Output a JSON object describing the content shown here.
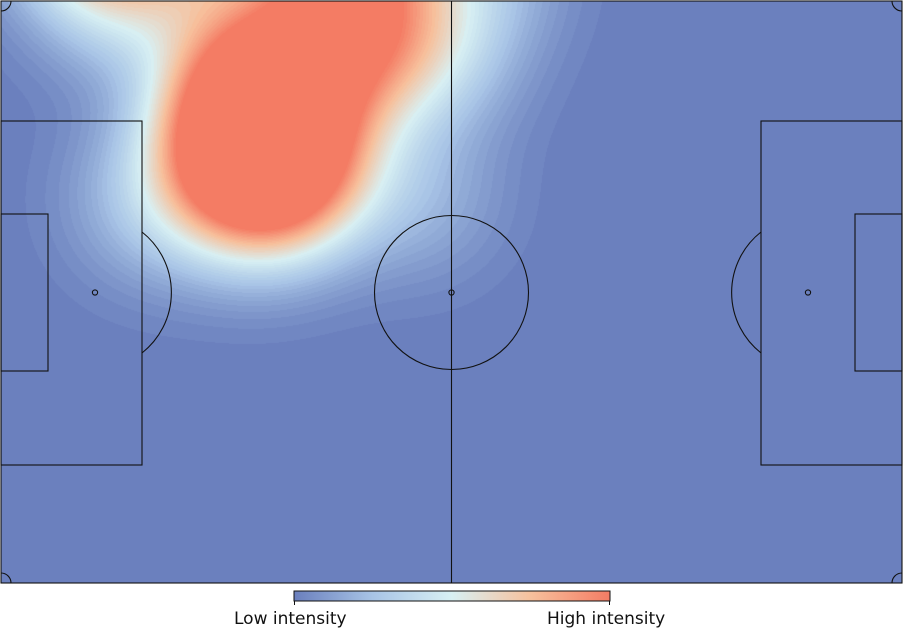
{
  "chart_data": {
    "type": "heatmap",
    "title": "",
    "subtitle": "",
    "colorscale": [
      "#6a7fbd",
      "#a8c4e6",
      "#d8f0f3",
      "#f7c09c",
      "#f47c64"
    ],
    "colorbar": {
      "low_label": "Low intensity",
      "high_label": "High intensity"
    },
    "pitch": {
      "length": 105,
      "width": 68,
      "background": "#6b7fbb",
      "line_color": "#111111"
    },
    "hotspots": [
      {
        "x": 27.5,
        "y": 52.5,
        "intensity": 0.95
      },
      {
        "x": 28.5,
        "y": 60.0,
        "intensity": 0.7
      },
      {
        "x": 34.0,
        "y": 48.5,
        "intensity": 0.65
      },
      {
        "x": 28.0,
        "y": 46.0,
        "intensity": 0.55
      },
      {
        "x": 36.5,
        "y": 58.5,
        "intensity": 0.55
      },
      {
        "x": 42.5,
        "y": 76.5,
        "intensity": 0.7
      },
      {
        "x": 50.0,
        "y": 89.0,
        "intensity": 0.55
      },
      {
        "x": 43.0,
        "y": 64.0,
        "intensity": 0.55
      },
      {
        "x": 9.5,
        "y": 79.0,
        "intensity": 0.85
      },
      {
        "x": 17.0,
        "y": 88.0,
        "intensity": 0.55
      },
      {
        "x": 20.5,
        "y": 76.0,
        "intensity": 0.45
      },
      {
        "x": 13.5,
        "y": 70.0,
        "intensity": 0.45
      },
      {
        "x": 15.0,
        "y": 99.0,
        "intensity": 0.4
      },
      {
        "x": 51.0,
        "y": 62.0,
        "intensity": 0.3
      },
      {
        "x": 56.0,
        "y": 72.0,
        "intensity": 0.25
      },
      {
        "x": 33.5,
        "y": 73.0,
        "intensity": 0.3
      },
      {
        "x": 39.5,
        "y": 70.0,
        "intensity": 0.25
      },
      {
        "x": 17.0,
        "y": 44.5,
        "intensity": 0.25
      },
      {
        "x": 49.0,
        "y": 45.0,
        "intensity": 0.2
      },
      {
        "x": 34.0,
        "y": 47.0,
        "intensity": 0.25
      },
      {
        "x": 24.0,
        "y": 85.0,
        "intensity": 0.28
      },
      {
        "x": 50.5,
        "y": 96.0,
        "intensity": 0.25
      }
    ]
  }
}
